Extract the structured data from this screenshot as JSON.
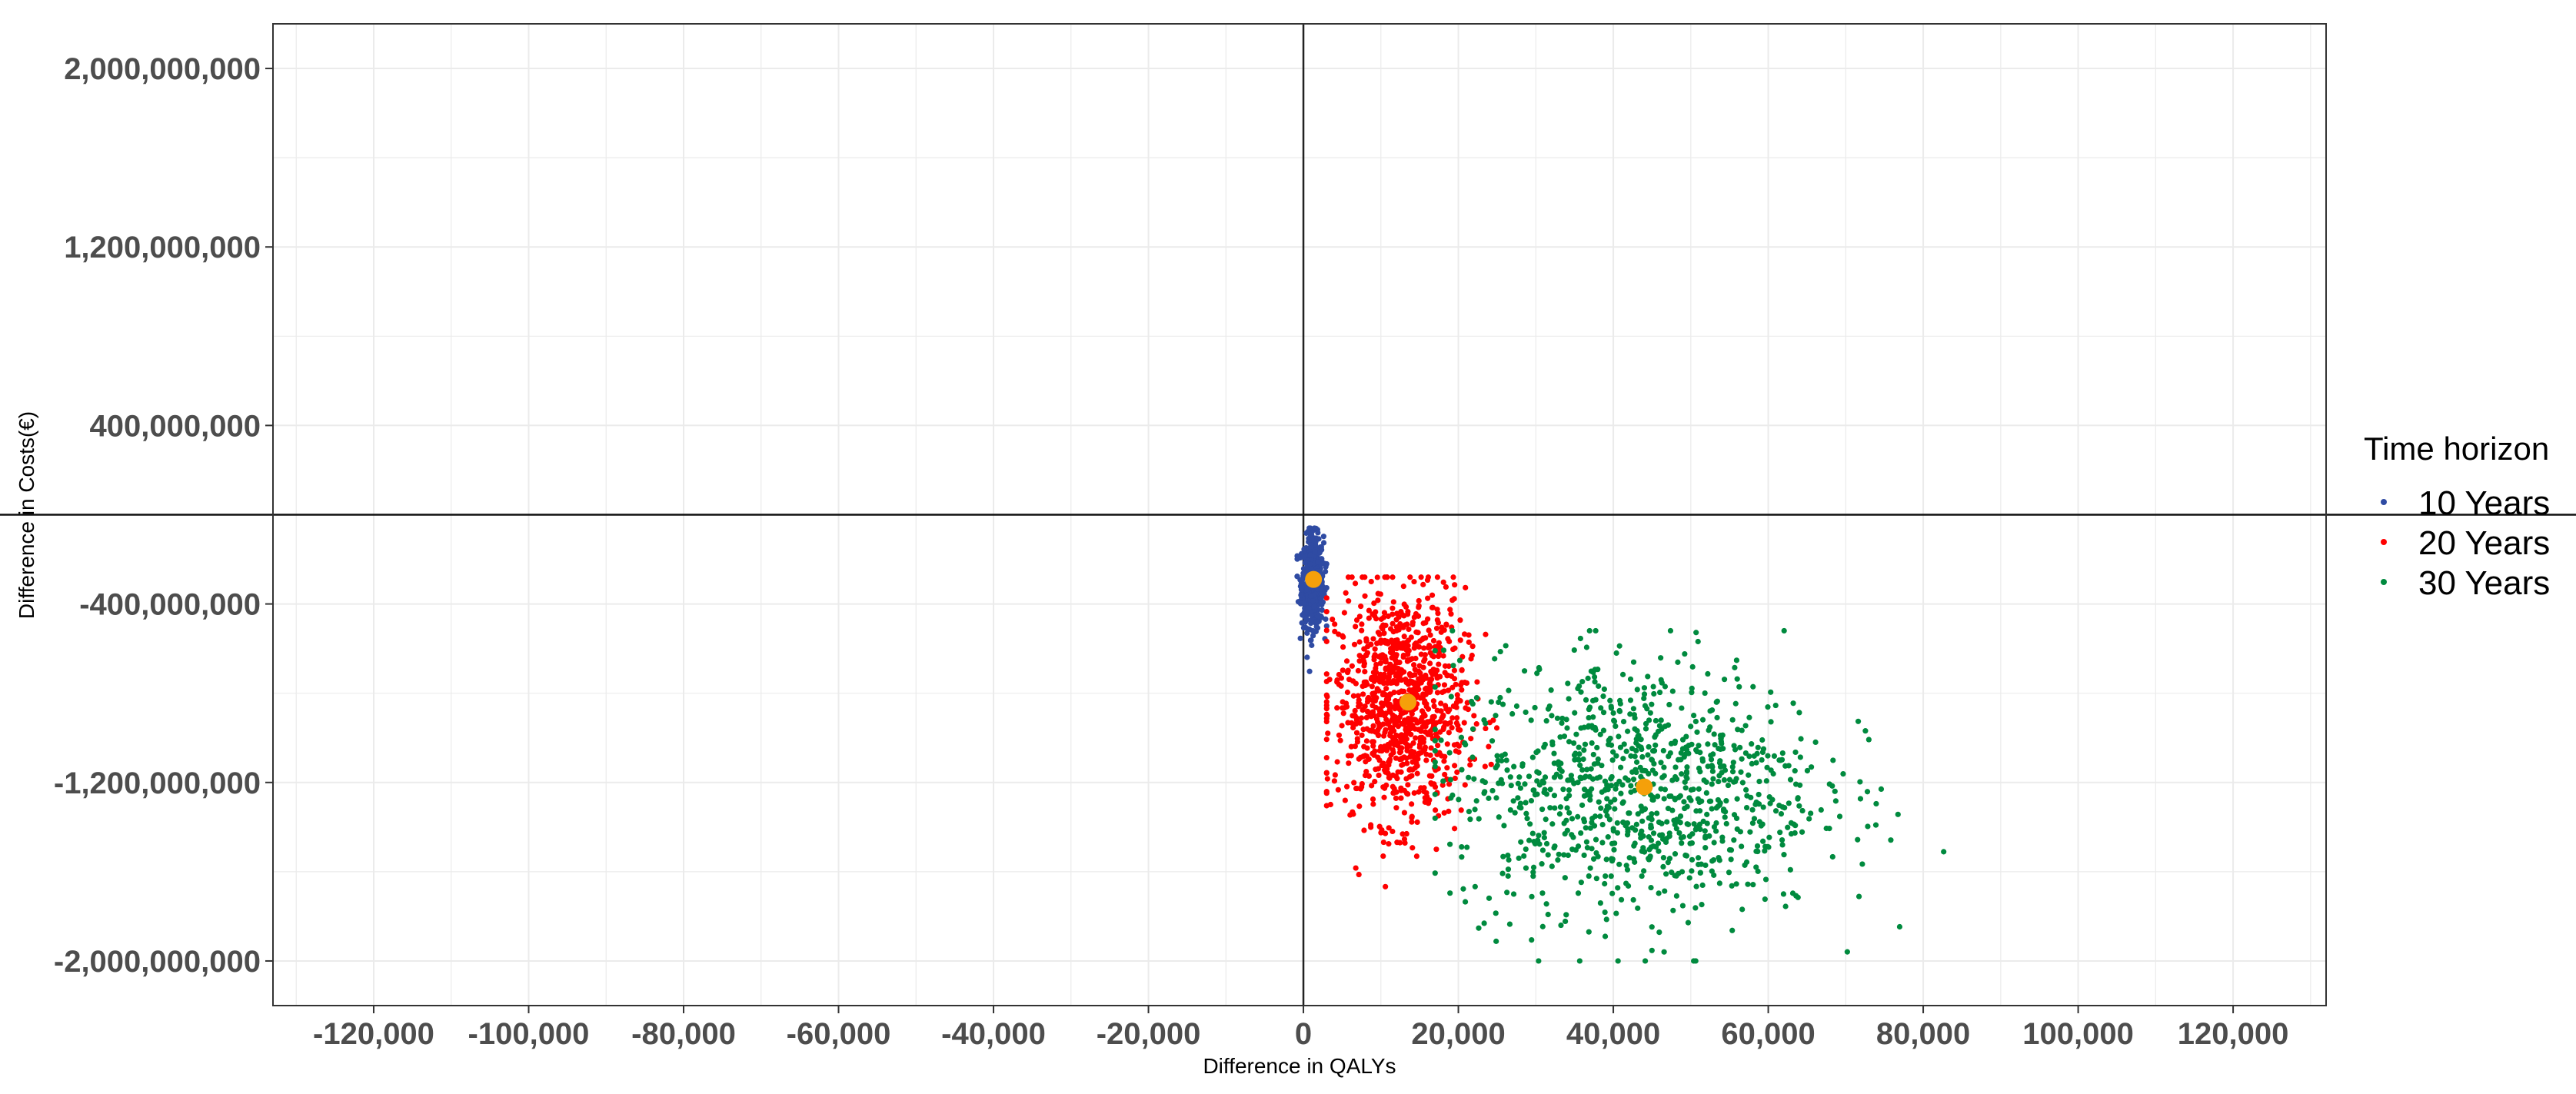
{
  "chart_data": {
    "type": "scatter",
    "title": "",
    "xlabel": "Difference in QALYs",
    "ylabel": "Difference in Costs(€)",
    "xlim": [
      -133000,
      132000
    ],
    "ylim": [
      -2200000000,
      2200000000
    ],
    "x_ticks": [
      {
        "value": -120000,
        "label": "-120,000"
      },
      {
        "value": -100000,
        "label": "-100,000"
      },
      {
        "value": -80000,
        "label": "-80,000"
      },
      {
        "value": -60000,
        "label": "-60,000"
      },
      {
        "value": -40000,
        "label": "-40,000"
      },
      {
        "value": -20000,
        "label": "-20,000"
      },
      {
        "value": 0,
        "label": "0"
      },
      {
        "value": 20000,
        "label": "20,000"
      },
      {
        "value": 40000,
        "label": "40,000"
      },
      {
        "value": 60000,
        "label": "60,000"
      },
      {
        "value": 80000,
        "label": "80,000"
      },
      {
        "value": 100000,
        "label": "100,000"
      },
      {
        "value": 120000,
        "label": "120,000"
      }
    ],
    "y_ticks": [
      {
        "value": 2000000000,
        "label": "2,000,000,000"
      },
      {
        "value": 1200000000,
        "label": "1,200,000,000"
      },
      {
        "value": 400000000,
        "label": "400,000,000"
      },
      {
        "value": -400000000,
        "label": "-400,000,000"
      },
      {
        "value": -1200000000,
        "label": "-1,200,000,000"
      },
      {
        "value": -2000000000,
        "label": "-2,000,000,000"
      }
    ],
    "grid": true,
    "reference_lines": {
      "x": 0,
      "y": 0
    },
    "legend": {
      "title": "Time horizon",
      "position": "right"
    },
    "series": [
      {
        "name": "10 Years",
        "color": "#2f4ba3",
        "count": 700,
        "center": [
          1200,
          -300000000
        ],
        "spread": [
          700,
          100000000
        ],
        "x_range": [
          -800,
          3000
        ],
        "y_range": [
          -750000000,
          -60000000
        ],
        "mean": [
          1300,
          -290000000
        ]
      },
      {
        "name": "20 Years",
        "color": "#ff0000",
        "count": 1000,
        "center": [
          12500,
          -850000000
        ],
        "spread": [
          4200,
          260000000
        ],
        "x_range": [
          3000,
          30000
        ],
        "y_range": [
          -1800000000,
          -280000000
        ],
        "mean": [
          13500,
          -840000000
        ]
      },
      {
        "name": "30 Years",
        "color": "#008a3e",
        "count": 1000,
        "center": [
          43000,
          -1220000000
        ],
        "spread": [
          12000,
          290000000
        ],
        "x_range": [
          17000,
          102000
        ],
        "y_range": [
          -2000000000,
          -520000000
        ],
        "mean": [
          44000,
          -1220000000
        ]
      }
    ],
    "mean_marker_color": "#f5a00a"
  }
}
